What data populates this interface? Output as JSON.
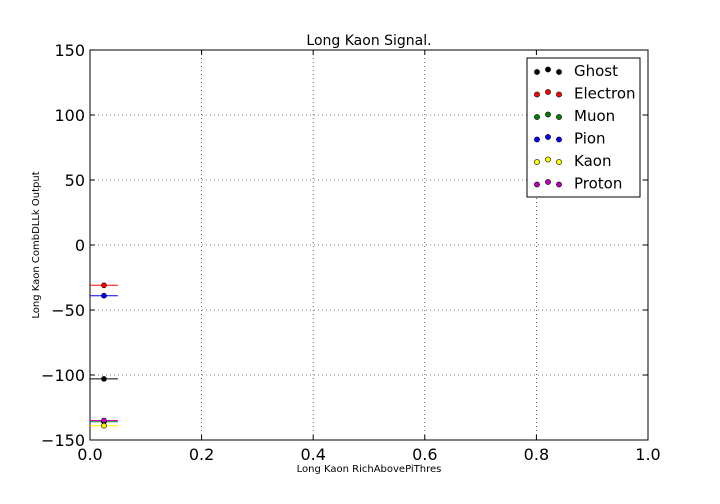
{
  "chart_data": {
    "type": "scatter",
    "title": "Long Kaon Signal.",
    "xlabel": "Long Kaon RichAbovePiThres",
    "ylabel": "Long Kaon CombDLLk Output",
    "xlim": [
      0.0,
      1.0
    ],
    "ylim": [
      -150,
      150
    ],
    "xticks": [
      "0.0",
      "0.2",
      "0.4",
      "0.6",
      "0.8",
      "1.0"
    ],
    "yticks": [
      "150",
      "100",
      "50",
      "0",
      "−50",
      "−100",
      "−150"
    ],
    "grid": true,
    "legend_position": "top-right",
    "series": [
      {
        "name": "Ghost",
        "color": "#000000",
        "x": 0.025,
        "y": -103,
        "xerr": 0.025
      },
      {
        "name": "Electron",
        "color": "#ff0000",
        "x": 0.025,
        "y": -31,
        "xerr": 0.025
      },
      {
        "name": "Muon",
        "color": "#008000",
        "x": 0.025,
        "y": -136,
        "xerr": 0.025
      },
      {
        "name": "Pion",
        "color": "#0000ff",
        "x": 0.025,
        "y": -39,
        "xerr": 0.025
      },
      {
        "name": "Kaon",
        "color": "#ffff00",
        "x": 0.025,
        "y": -139,
        "xerr": 0.025
      },
      {
        "name": "Proton",
        "color": "#bf00bf",
        "x": 0.025,
        "y": -135,
        "xerr": 0.025
      }
    ]
  }
}
